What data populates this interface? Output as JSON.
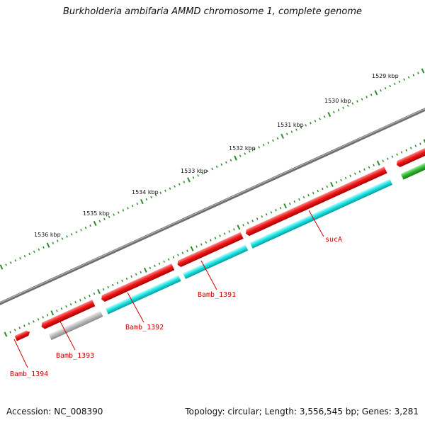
{
  "title": "Burkholderia ambifaria AMMD chromosome 1, complete genome",
  "footer": {
    "accession": "Accession: NC_008390",
    "summary": "Topology: circular; Length: 3,556,545 bp; Genes: 3,281"
  },
  "scale_labels": [
    "1529 kbp",
    "1530 kbp",
    "1531 kbp",
    "1532 kbp",
    "1533 kbp",
    "1534 kbp",
    "1535 kbp",
    "1536 kbp"
  ],
  "gene_labels": [
    "sucA",
    "Bamb_1391",
    "Bamb_1392",
    "Bamb_1393",
    "Bamb_1394"
  ],
  "colors": {
    "backbone": "#7a7a7a",
    "gene_outer": "#ee1111",
    "cds_inner": "#18e4e4",
    "cds_inner_other": "#b8b8b8",
    "cds_inner_green": "#33bb33",
    "tick": "#2a8a2a",
    "label_line": "#cc0000"
  }
}
